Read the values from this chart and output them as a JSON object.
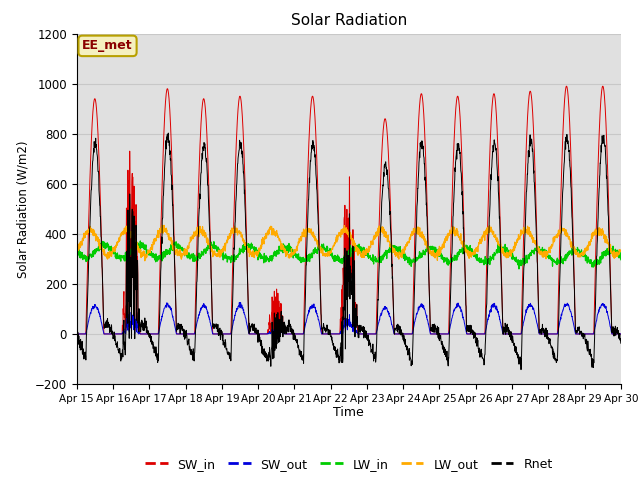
{
  "title": "Solar Radiation",
  "ylabel": "Solar Radiation (W/m2)",
  "xlabel": "Time",
  "ylim": [
    -200,
    1200
  ],
  "annotation_text": "EE_met",
  "x_tick_labels": [
    "Apr 15",
    "Apr 16",
    "Apr 17",
    "Apr 18",
    "Apr 19",
    "Apr 20",
    "Apr 21",
    "Apr 22",
    "Apr 23",
    "Apr 24",
    "Apr 25",
    "Apr 26",
    "Apr 27",
    "Apr 28",
    "Apr 29",
    "Apr 30"
  ],
  "grid_color": "#c8c8c8",
  "bg_color": "#e0e0e0",
  "colors": {
    "SW_in": "#dd0000",
    "SW_out": "#0000dd",
    "LW_in": "#00cc00",
    "LW_out": "#ffaa00",
    "Rnet": "#000000"
  },
  "n_days": 15,
  "points_per_day": 144,
  "figsize": [
    6.4,
    4.8
  ],
  "dpi": 100
}
